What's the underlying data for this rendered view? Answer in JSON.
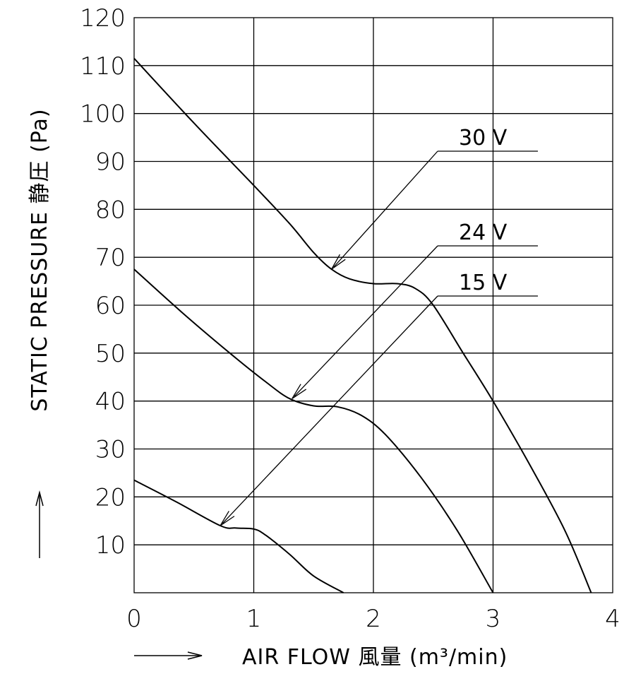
{
  "chart_data": {
    "type": "line",
    "title": "",
    "xlabel": "AIR FLOW 風量 (m³/min)",
    "ylabel": "STATIC PRESSURE 静圧 (Pa)",
    "xlim": [
      0,
      4
    ],
    "ylim": [
      0,
      120
    ],
    "x_ticks": [
      0,
      1,
      2,
      3,
      4
    ],
    "x_tick_labels": [
      "0",
      "1",
      "2",
      "3",
      "4"
    ],
    "y_ticks": [
      10,
      20,
      30,
      40,
      50,
      60,
      70,
      80,
      90,
      100,
      110,
      120
    ],
    "y_tick_labels": [
      "10",
      "20",
      "30",
      "40",
      "50",
      "60",
      "70",
      "80",
      "90",
      "100",
      "110",
      "120"
    ],
    "grid": true,
    "series": [
      {
        "name": "30 V",
        "x": [
          0,
          0.5,
          1.0,
          1.3,
          1.5,
          1.65,
          1.8,
          2.0,
          2.2,
          2.35,
          2.5,
          2.75,
          3.0,
          3.3,
          3.6,
          3.82
        ],
        "y": [
          111.5,
          98,
          85,
          77,
          71,
          67.5,
          65.5,
          64.5,
          64.5,
          63.5,
          60,
          50,
          40,
          27,
          13,
          0
        ],
        "label_anchor_x": 1.65,
        "label_anchor_y": 67.5
      },
      {
        "name": "24 V",
        "x": [
          0,
          0.4,
          0.8,
          1.1,
          1.3,
          1.5,
          1.7,
          1.9,
          2.1,
          2.4,
          2.7,
          3.0
        ],
        "y": [
          67.5,
          58.5,
          50,
          44,
          40.5,
          39,
          38.8,
          37,
          33,
          24,
          13,
          0
        ],
        "label_anchor_x": 1.32,
        "label_anchor_y": 40.5
      },
      {
        "name": "15 V",
        "x": [
          0,
          0.35,
          0.72,
          0.85,
          1.0,
          1.1,
          1.3,
          1.5,
          1.75
        ],
        "y": [
          23.5,
          19,
          14,
          13.5,
          13.3,
          12,
          8,
          3.5,
          0
        ],
        "label_anchor_x": 0.72,
        "label_anchor_y": 14
      }
    ],
    "annotations": [
      {
        "text": "30 V",
        "series": "30 V"
      },
      {
        "text": "24 V",
        "series": "24 V"
      },
      {
        "text": "15 V",
        "series": "15 V"
      }
    ]
  }
}
